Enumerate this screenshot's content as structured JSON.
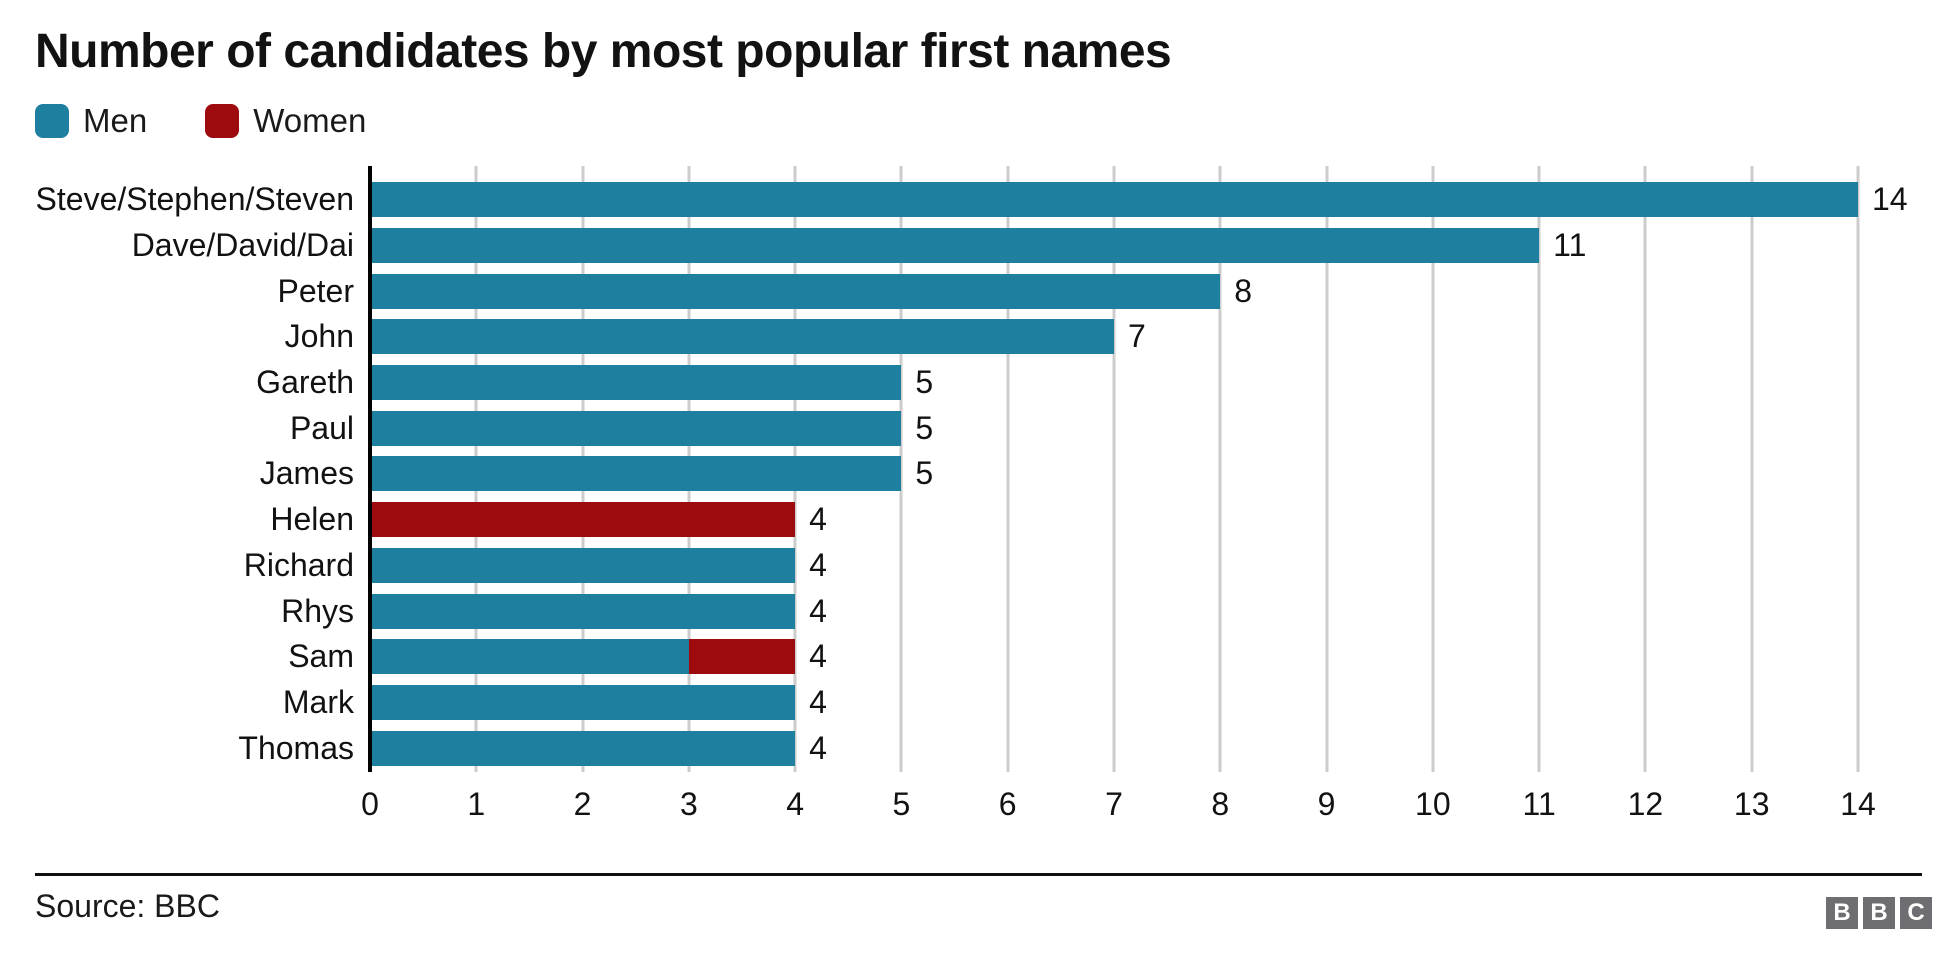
{
  "title": "Number of candidates by most popular first names",
  "legend": [
    {
      "label": "Men",
      "color": "#1f7f9f"
    },
    {
      "label": "Women",
      "color": "#9e0b0e"
    }
  ],
  "chart_data": {
    "type": "bar",
    "orientation": "horizontal",
    "title": "Number of candidates by most popular first names",
    "categories": [
      "Steve/Stephen/Steven",
      "Dave/David/Dai",
      "Peter",
      "John",
      "Gareth",
      "Paul",
      "James",
      "Helen",
      "Richard",
      "Rhys",
      "Sam",
      "Mark",
      "Thomas"
    ],
    "series": [
      {
        "name": "Men",
        "color": "#1f7f9f",
        "values": [
          14,
          11,
          8,
          7,
          5,
          5,
          5,
          0,
          4,
          4,
          3,
          4,
          4
        ]
      },
      {
        "name": "Women",
        "color": "#9e0b0e",
        "values": [
          0,
          0,
          0,
          0,
          0,
          0,
          0,
          4,
          0,
          0,
          1,
          0,
          0
        ]
      }
    ],
    "totals": [
      14,
      11,
      8,
      7,
      5,
      5,
      5,
      4,
      4,
      4,
      4,
      4,
      4
    ],
    "x_ticks": [
      0,
      1,
      2,
      3,
      4,
      5,
      6,
      7,
      8,
      9,
      10,
      11,
      12,
      13,
      14
    ],
    "xlim": [
      0,
      14
    ],
    "grid": "vertical",
    "legend_position": "top-left",
    "value_labels": true,
    "colors": {
      "axis": "#000000",
      "gridline": "#cccccc"
    }
  },
  "footer": {
    "source_text": "Source: BBC",
    "logo_letters": [
      "B",
      "B",
      "C"
    ]
  }
}
